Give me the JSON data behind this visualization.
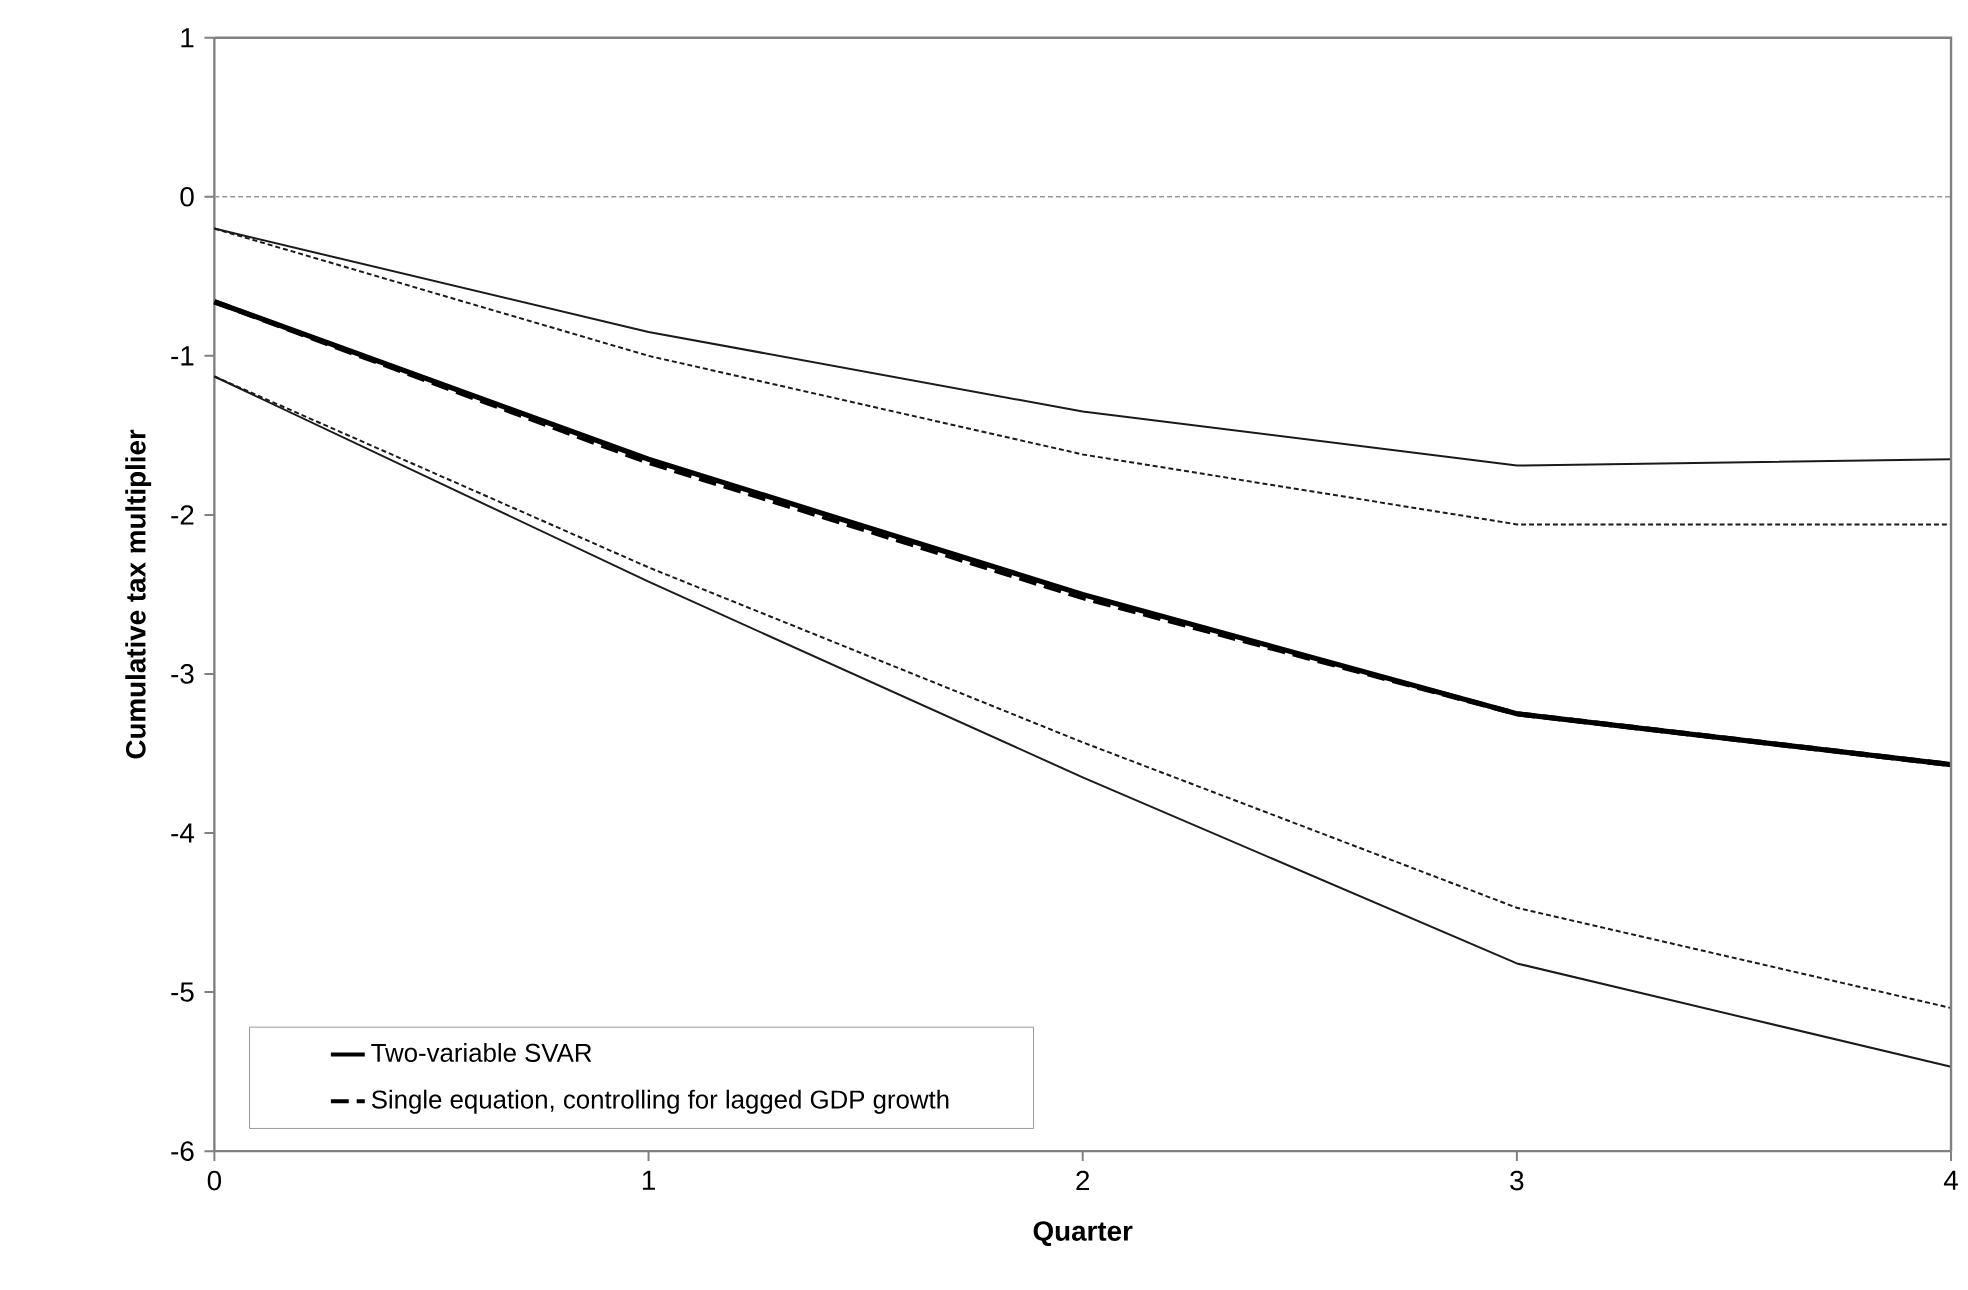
{
  "chart_data": {
    "type": "line",
    "xlabel": "Quarter",
    "ylabel": "Cumulative tax multiplier",
    "x": [
      0,
      1,
      2,
      3,
      4
    ],
    "series": [
      {
        "name": "Two-variable SVAR",
        "color": "#000000",
        "line_style": "solid",
        "values": [
          -0.66,
          -1.65,
          -2.5,
          -3.25,
          -3.57
        ]
      },
      {
        "name": "Single equation, controlling for lagged GDP growth",
        "color": "#000000",
        "line_style": "dashed",
        "values": [
          -0.66,
          -1.67,
          -2.52,
          -3.25,
          -3.57
        ]
      },
      {
        "color": "#1a1a1a",
        "line_style": "solid",
        "values": [
          -0.2,
          -0.85,
          -1.35,
          -1.69,
          -1.65
        ]
      },
      {
        "color": "#1a1a1a",
        "line_style": "solid",
        "values": [
          -1.13,
          -2.42,
          -3.65,
          -4.82,
          -5.47
        ]
      },
      {
        "color": "#1a1a1a",
        "line_style": "dotted",
        "values": [
          -0.2,
          -1.0,
          -1.62,
          -2.06,
          -2.06
        ]
      },
      {
        "color": "#1a1a1a",
        "line_style": "dotted",
        "values": [
          -1.13,
          -2.33,
          -3.43,
          -4.47,
          -5.1
        ]
      }
    ],
    "xlim": [
      0,
      4
    ],
    "xticks": [
      0,
      1,
      2,
      3,
      4
    ],
    "ylim": [
      -6,
      1
    ],
    "yticks": [
      -6,
      -5,
      -4,
      -3,
      -2,
      -1,
      0,
      1
    ],
    "ref_lines": [
      {
        "axis": "y",
        "value": 0,
        "color": "#999999",
        "line_style": "dotted"
      }
    ],
    "grid": false,
    "legend": "bottom left",
    "marker": "none"
  }
}
